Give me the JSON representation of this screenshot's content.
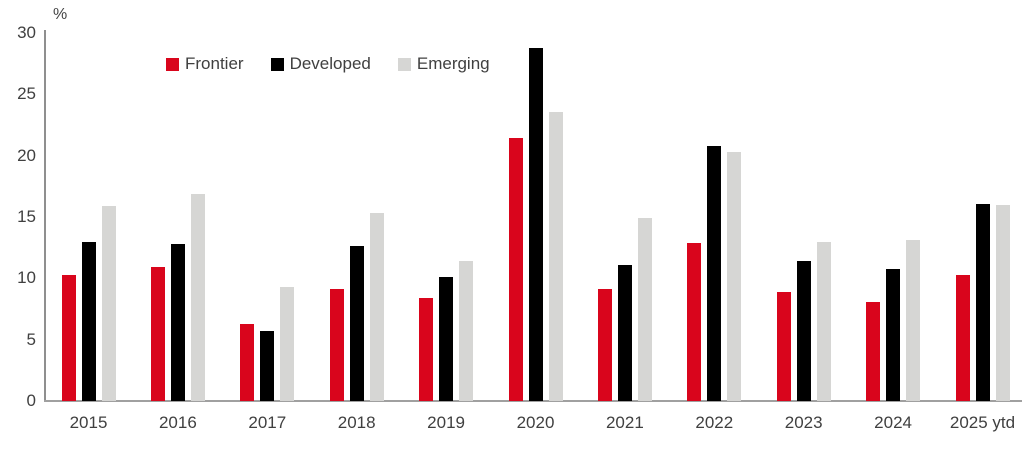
{
  "chart_data": {
    "type": "bar",
    "title": "",
    "unit_label": "%",
    "xlabel": "",
    "ylabel": "%",
    "ylim": [
      0,
      30
    ],
    "yticks": [
      0,
      5,
      10,
      15,
      20,
      25,
      30
    ],
    "grid": false,
    "legend_position": "top-left",
    "categories": [
      "2015",
      "2016",
      "2017",
      "2018",
      "2019",
      "2020",
      "2021",
      "2022",
      "2023",
      "2024",
      "2025 ytd"
    ],
    "series": [
      {
        "name": "Frontier",
        "color": "#d9051c",
        "values": [
          10.3,
          10.9,
          6.3,
          9.1,
          8.4,
          21.4,
          9.1,
          12.9,
          8.9,
          8.1,
          10.3
        ]
      },
      {
        "name": "Developed",
        "color": "#000000",
        "values": [
          13.0,
          12.8,
          5.7,
          12.6,
          10.1,
          28.8,
          11.1,
          20.8,
          11.4,
          10.8,
          16.1
        ]
      },
      {
        "name": "Emerging",
        "color": "#d6d6d4",
        "values": [
          15.9,
          16.9,
          9.3,
          15.3,
          11.4,
          23.6,
          14.9,
          20.3,
          13.0,
          13.1,
          16.0
        ]
      }
    ]
  },
  "colors": {
    "axis_line": "#8f8f8f",
    "baseline": "#a0a0a0",
    "text": "#404040"
  }
}
